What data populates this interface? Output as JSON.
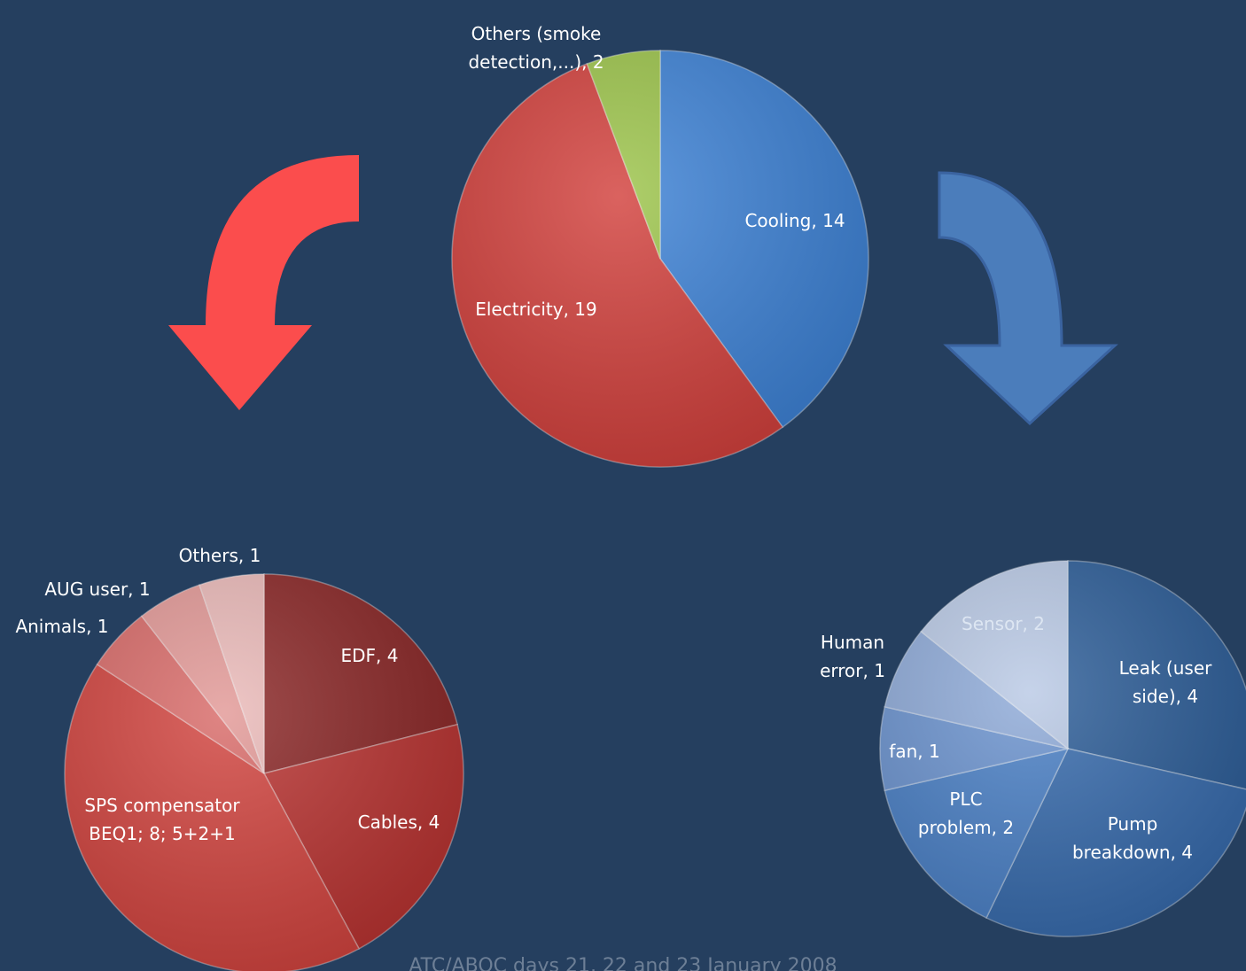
{
  "chart_data": [
    {
      "type": "pie",
      "value_labels": [
        "Cooling, 14",
        "Electricity, 19",
        "Others (smoke detection,...), 2"
      ],
      "values": [
        14,
        19,
        2
      ],
      "colors": [
        "#3d82d6",
        "#d2403c",
        "#9cc44a"
      ]
    },
    {
      "type": "pie",
      "value_labels": [
        "EDF, 4",
        "Cables, 4",
        "SPS compensator BEQ1; 8; 5+2+1",
        "Animals, 1",
        "AUG user, 1",
        "Others, 1"
      ],
      "values": [
        4,
        4,
        8,
        1,
        1,
        1
      ],
      "colors": [
        "#8a2626",
        "#b93331",
        "#d1433e",
        "#d86a68",
        "#e29896",
        "#eab9b8"
      ]
    },
    {
      "type": "pie",
      "value_labels": [
        "Leak (user side), 4",
        "Pump breakdown, 4",
        "PLC problem, 2",
        "fan, 1",
        "Human error, 1",
        "Sensor, 2"
      ],
      "values": [
        4,
        4,
        2,
        1,
        1,
        2
      ],
      "colors": [
        "#2c5d98",
        "#376bad",
        "#4a80c6",
        "#6b93cf",
        "#8eaad8",
        "#b9c9e5"
      ]
    }
  ],
  "footer": "ATC/ABOC days 21, 22 and 23 January 2008"
}
